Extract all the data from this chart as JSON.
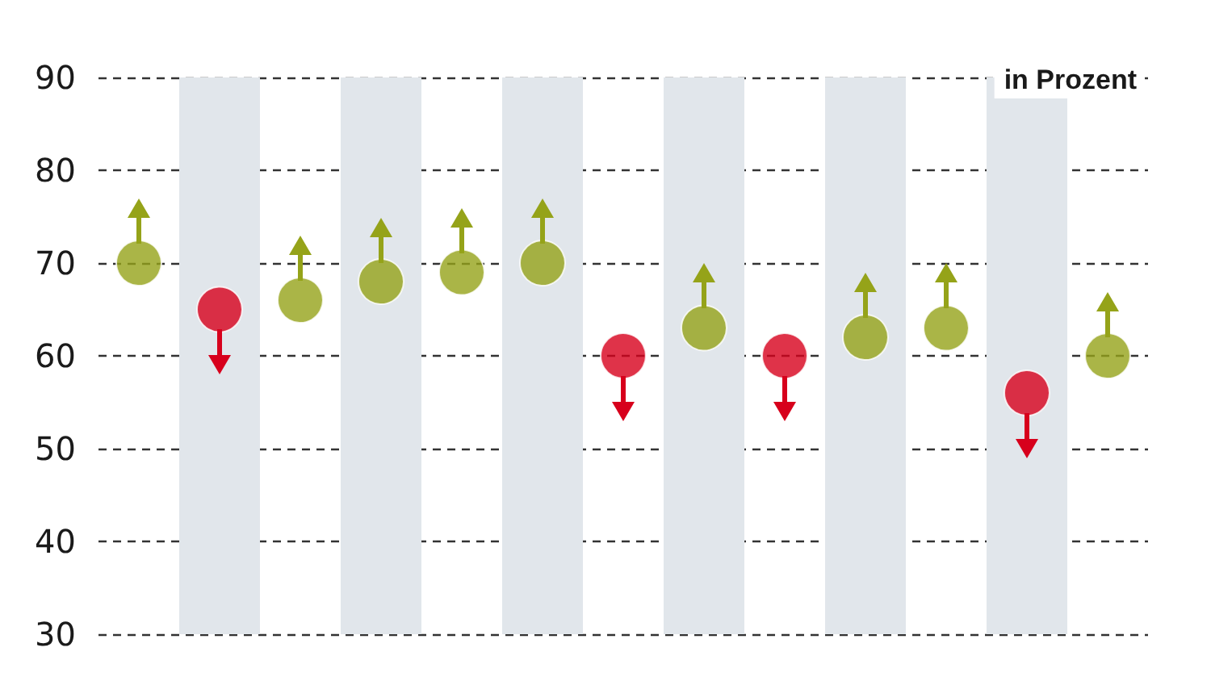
{
  "chart_data": {
    "type": "scatter",
    "ylabel": "in Prozent",
    "categories": [
      null,
      null,
      null,
      null,
      null,
      null,
      null,
      null,
      null,
      null,
      null,
      null,
      null
    ],
    "series": [
      {
        "color": "#95a319",
        "values": [
          70,
          null,
          66,
          68,
          69,
          70,
          null,
          63,
          null,
          62,
          63,
          null,
          60
        ]
      },
      {
        "color": "#d7001c",
        "values": [
          null,
          65,
          null,
          null,
          null,
          null,
          60,
          null,
          60,
          null,
          null,
          56,
          null
        ]
      }
    ],
    "ylim": [
      30,
      90
    ],
    "yticks": [
      30,
      40,
      50,
      60,
      70,
      80,
      90
    ],
    "grid": "y",
    "marker": "circle",
    "tick_labels": "y"
  }
}
